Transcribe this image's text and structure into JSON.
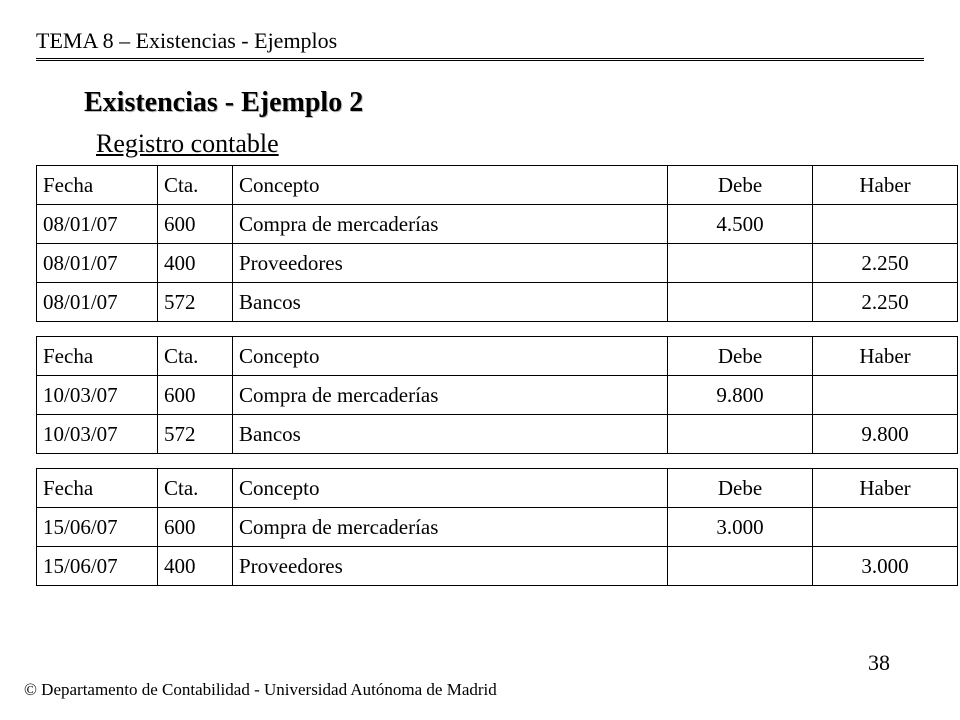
{
  "header": "TEMA 8 – Existencias - Ejemplos",
  "title": "Existencias - Ejemplo 2",
  "subtitle": "Registro contable",
  "columns": [
    "Fecha",
    "Cta.",
    "Concepto",
    "Debe",
    "Haber"
  ],
  "tables": [
    {
      "rows": [
        {
          "fecha": "08/01/07",
          "cta": "600",
          "concepto": "Compra de mercaderías",
          "debe": "4.500",
          "haber": ""
        },
        {
          "fecha": "08/01/07",
          "cta": "400",
          "concepto": "Proveedores",
          "debe": "",
          "haber": "2.250"
        },
        {
          "fecha": "08/01/07",
          "cta": "572",
          "concepto": "Bancos",
          "debe": "",
          "haber": "2.250"
        }
      ]
    },
    {
      "rows": [
        {
          "fecha": "10/03/07",
          "cta": "600",
          "concepto": "Compra de mercaderías",
          "debe": "9.800",
          "haber": ""
        },
        {
          "fecha": "10/03/07",
          "cta": "572",
          "concepto": "Bancos",
          "debe": "",
          "haber": "9.800"
        }
      ]
    },
    {
      "rows": [
        {
          "fecha": "15/06/07",
          "cta": "600",
          "concepto": "Compra de mercaderías",
          "debe": "3.000",
          "haber": ""
        },
        {
          "fecha": "15/06/07",
          "cta": "400",
          "concepto": "Proveedores",
          "debe": "",
          "haber": "3.000"
        }
      ]
    }
  ],
  "footer": "© Departamento de Contabilidad - Universidad Autónoma de Madrid",
  "page_number": "38"
}
